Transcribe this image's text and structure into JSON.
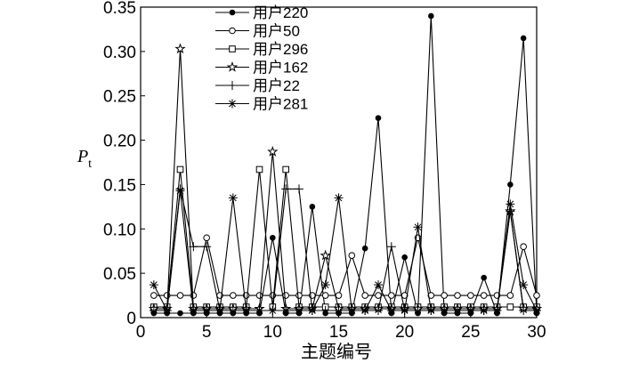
{
  "chart_data": {
    "type": "line",
    "xlabel": "主题编号",
    "ylabel": "P",
    "ylabel_subscript": "t",
    "x": [
      1,
      2,
      3,
      4,
      5,
      6,
      7,
      8,
      9,
      10,
      11,
      12,
      13,
      14,
      15,
      16,
      17,
      18,
      19,
      20,
      21,
      22,
      23,
      24,
      25,
      26,
      27,
      28,
      29,
      30
    ],
    "xlim": [
      0,
      30
    ],
    "xticks": [
      0,
      5,
      10,
      15,
      20,
      25,
      30
    ],
    "ylim": [
      0,
      0.35
    ],
    "yticks": [
      0,
      0.05,
      {
        "value": 0.1,
        "label": "0.10"
      },
      0.15,
      {
        "value": 0.2,
        "label": "0.20"
      },
      0.25,
      {
        "value": 0.3,
        "label": "0.30"
      },
      0.35
    ],
    "series": [
      {
        "name": "用户220",
        "color": "#000000",
        "marker": "filled-circle",
        "values": [
          0.005,
          0.005,
          0.005,
          0.005,
          0.005,
          0.005,
          0.005,
          0.005,
          0.005,
          0.09,
          0.005,
          0.005,
          0.125,
          0.005,
          0.005,
          0.005,
          0.078,
          0.225,
          0.005,
          0.068,
          0.005,
          0.34,
          0.005,
          0.005,
          0.005,
          0.045,
          0.005,
          0.15,
          0.315,
          0.005
        ]
      },
      {
        "name": "用户50",
        "color": "#000000",
        "marker": "open-circle",
        "values": [
          0.025,
          0.025,
          0.025,
          0.025,
          0.09,
          0.025,
          0.025,
          0.025,
          0.025,
          0.025,
          0.025,
          0.025,
          0.025,
          0.025,
          0.025,
          0.07,
          0.025,
          0.025,
          0.025,
          0.025,
          0.09,
          0.025,
          0.025,
          0.025,
          0.025,
          0.025,
          0.025,
          0.025,
          0.08,
          0.025
        ]
      },
      {
        "name": "用户296",
        "color": "#000000",
        "marker": "open-square",
        "values": [
          0.012,
          0.012,
          0.167,
          0.012,
          0.012,
          0.012,
          0.012,
          0.012,
          0.167,
          0.012,
          0.167,
          0.012,
          0.012,
          0.012,
          0.012,
          0.012,
          0.012,
          0.012,
          0.012,
          0.012,
          0.012,
          0.012,
          0.012,
          0.012,
          0.012,
          0.012,
          0.012,
          0.012,
          0.012,
          0.012
        ]
      },
      {
        "name": "用户162",
        "color": "#000000",
        "marker": "star",
        "values": [
          0.01,
          0.01,
          0.303,
          0.01,
          0.01,
          0.01,
          0.01,
          0.01,
          0.01,
          0.187,
          0.01,
          0.01,
          0.01,
          0.07,
          0.01,
          0.01,
          0.01,
          0.01,
          0.01,
          0.01,
          0.01,
          0.01,
          0.01,
          0.01,
          0.01,
          0.01,
          0.01,
          0.12,
          0.01,
          0.01
        ]
      },
      {
        "name": "用户22",
        "color": "#000000",
        "marker": "plus",
        "values": [
          0.008,
          0.008,
          0.145,
          0.08,
          0.08,
          0.008,
          0.008,
          0.008,
          0.008,
          0.008,
          0.145,
          0.145,
          0.008,
          0.008,
          0.008,
          0.008,
          0.008,
          0.008,
          0.08,
          0.008,
          0.008,
          0.008,
          0.008,
          0.008,
          0.008,
          0.008,
          0.008,
          0.12,
          0.008,
          0.008
        ]
      },
      {
        "name": "用户281",
        "color": "#000000",
        "marker": "asterisk",
        "values": [
          0.037,
          0.008,
          0.143,
          0.008,
          0.008,
          0.008,
          0.135,
          0.008,
          0.008,
          0.008,
          0.008,
          0.008,
          0.008,
          0.037,
          0.135,
          0.008,
          0.008,
          0.037,
          0.008,
          0.008,
          0.102,
          0.008,
          0.008,
          0.008,
          0.008,
          0.008,
          0.008,
          0.128,
          0.037,
          0.008
        ]
      }
    ]
  }
}
